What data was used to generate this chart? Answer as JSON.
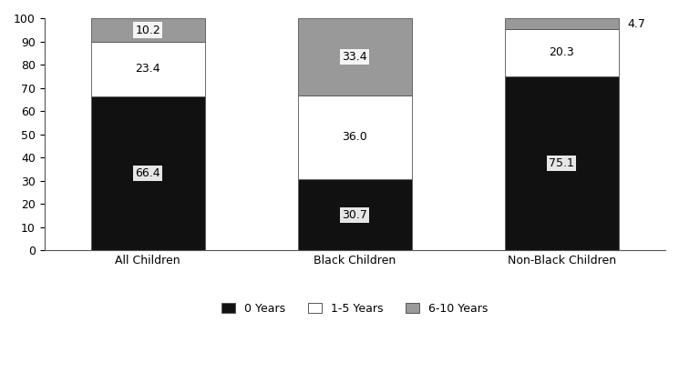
{
  "categories": [
    "All Children",
    "Black Children",
    "Non-Black Children"
  ],
  "series": {
    "0 Years": [
      66.4,
      30.7,
      75.1
    ],
    "1-5 Years": [
      23.4,
      36.0,
      20.3
    ],
    "6-10 Years": [
      10.2,
      33.4,
      4.7
    ]
  },
  "colors": {
    "0 Years": "#111111",
    "1-5 Years": "#ffffff",
    "6-10 Years": "#999999"
  },
  "bar_width": 0.55,
  "ylim": [
    0,
    100
  ],
  "yticks": [
    0,
    10,
    20,
    30,
    40,
    50,
    60,
    70,
    80,
    90,
    100
  ],
  "legend_labels": [
    "0 Years",
    "1-5 Years",
    "6-10 Years"
  ],
  "label_fontsize": 9,
  "tick_fontsize": 9,
  "legend_fontsize": 9,
  "edge_color": "#555555",
  "outside_label_indices": [
    [
      2,
      2
    ]
  ],
  "x_positions": [
    0,
    1,
    2
  ]
}
